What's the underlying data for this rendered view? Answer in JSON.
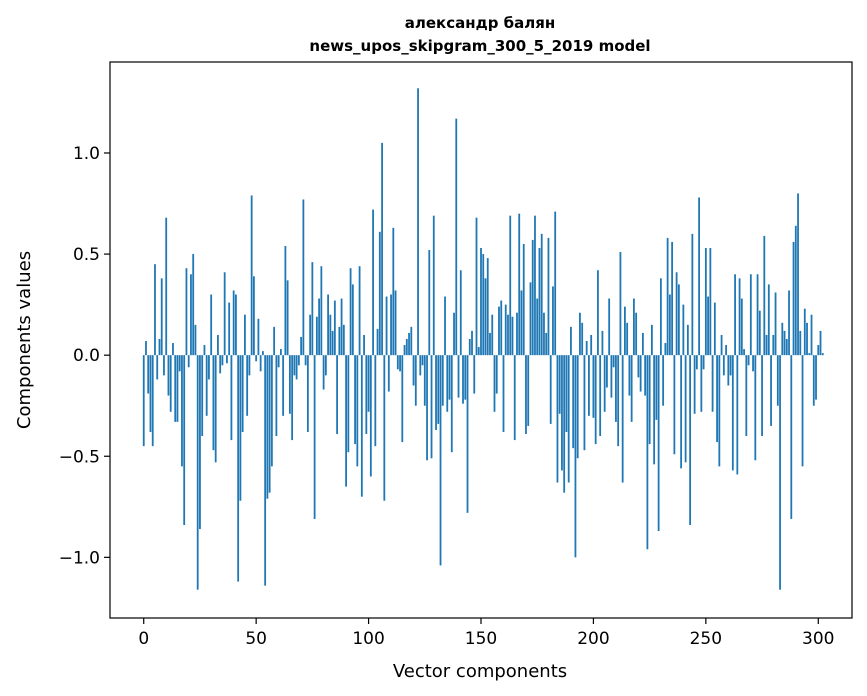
{
  "chart_data": {
    "type": "bar",
    "title_lines": [
      "александр балян",
      "news_upos_skipgram_300_5_2019 model"
    ],
    "xlabel": "Vector components",
    "ylabel": "Components values",
    "xlim": [
      -15,
      315
    ],
    "ylim": [
      -1.3,
      1.45
    ],
    "xticks": [
      0,
      50,
      100,
      150,
      200,
      250,
      300
    ],
    "xtick_labels": [
      "0",
      "50",
      "100",
      "150",
      "200",
      "250",
      "300"
    ],
    "yticks": [
      -1.0,
      -0.5,
      0.0,
      0.5,
      1.0
    ],
    "ytick_labels": [
      "−1.0",
      "−0.5",
      "0.0",
      "0.5",
      "1.0"
    ],
    "bar_color": "#1f77b4",
    "values": [
      -0.45,
      0.07,
      -0.19,
      -0.38,
      -0.45,
      0.45,
      -0.12,
      0.08,
      0.38,
      -0.1,
      0.68,
      -0.2,
      -0.28,
      0.06,
      -0.33,
      -0.33,
      -0.08,
      -0.55,
      -0.84,
      0.43,
      -0.06,
      0.4,
      0.5,
      0.15,
      -1.16,
      -0.86,
      -0.4,
      0.05,
      -0.3,
      -0.12,
      0.3,
      -0.47,
      -0.53,
      0.1,
      -0.09,
      -0.05,
      0.41,
      -0.04,
      0.26,
      -0.42,
      0.32,
      0.3,
      -1.12,
      -0.72,
      -0.38,
      0.2,
      -0.3,
      -0.1,
      0.79,
      0.39,
      -0.03,
      0.18,
      -0.08,
      0.02,
      -1.14,
      -0.71,
      -0.68,
      -0.55,
      0.14,
      -0.4,
      -0.06,
      0.03,
      -0.3,
      0.54,
      0.37,
      -0.29,
      -0.42,
      -0.1,
      -0.12,
      -0.05,
      0.09,
      0.77,
      -0.05,
      -0.38,
      0.2,
      0.46,
      -0.81,
      0.19,
      0.28,
      0.44,
      -0.17,
      -0.1,
      0.3,
      0.2,
      0.12,
      0.27,
      -0.39,
      0.14,
      0.28,
      0.15,
      -0.65,
      -0.48,
      0.43,
      0.35,
      -0.44,
      -0.55,
      0.44,
      -0.7,
      0.1,
      -0.39,
      -0.28,
      -0.6,
      0.72,
      -0.45,
      0.13,
      0.61,
      1.05,
      -0.72,
      0.29,
      -0.18,
      0.3,
      0.63,
      0.32,
      -0.07,
      -0.08,
      -0.43,
      0.05,
      0.08,
      0.11,
      0.14,
      -0.15,
      -0.25,
      1.32,
      -0.1,
      -0.05,
      -0.25,
      -0.52,
      0.52,
      -0.51,
      0.69,
      -0.37,
      -0.34,
      -1.04,
      -0.25,
      0.29,
      -0.28,
      -0.22,
      -0.48,
      0.21,
      1.17,
      -0.21,
      0.42,
      -0.24,
      -0.22,
      -0.78,
      0.08,
      0.12,
      -0.19,
      0.68,
      0.04,
      0.53,
      0.5,
      0.38,
      0.48,
      0.11,
      0.2,
      -0.28,
      -0.19,
      0.24,
      0.27,
      -0.38,
      0.25,
      0.2,
      0.69,
      0.19,
      -0.42,
      0.21,
      0.7,
      0.32,
      0.55,
      -0.39,
      -0.35,
      0.36,
      0.57,
      0.69,
      0.28,
      0.53,
      0.6,
      0.21,
      0.11,
      0.58,
      -0.34,
      0.34,
      0.71,
      -0.63,
      -0.29,
      -0.57,
      -0.68,
      -0.38,
      -0.63,
      0.14,
      -0.46,
      -1.0,
      -0.51,
      0.21,
      0.16,
      -0.47,
      0.07,
      -0.3,
      0.1,
      -0.31,
      -0.44,
      0.42,
      -0.4,
      0.12,
      -0.28,
      -0.16,
      0.28,
      -0.21,
      -0.06,
      -0.33,
      -0.45,
      0.51,
      -0.63,
      0.24,
      0.16,
      -0.2,
      -0.33,
      0.28,
      0.21,
      -0.11,
      -0.18,
      0.11,
      -0.2,
      -0.96,
      -0.44,
      0.15,
      -0.54,
      -0.32,
      -0.87,
      0.38,
      -0.25,
      0.06,
      0.58,
      0.3,
      0.56,
      -0.49,
      0.41,
      0.35,
      -0.56,
      0.25,
      -0.53,
      0.15,
      -0.84,
      0.6,
      -0.29,
      -0.07,
      0.78,
      -0.28,
      -0.07,
      0.53,
      0.29,
      0.53,
      -0.28,
      0.26,
      -0.43,
      -0.55,
      0.1,
      -0.1,
      0.05,
      -0.15,
      -0.1,
      -0.57,
      0.4,
      -0.59,
      0.38,
      0.28,
      0.03,
      -0.4,
      -0.05,
      0.4,
      -0.08,
      -0.52,
      0.4,
      0.22,
      -0.4,
      0.59,
      0.1,
      0.35,
      -0.35,
      0.1,
      0.31,
      -0.25,
      -1.16,
      0.16,
      0.12,
      0.08,
      0.32,
      -0.81,
      0.56,
      0.64,
      0.8,
      0.12,
      -0.55,
      0.23,
      0.16,
      0.01,
      0.2,
      -0.25,
      -0.22,
      0.05,
      0.12,
      0.01
    ]
  }
}
